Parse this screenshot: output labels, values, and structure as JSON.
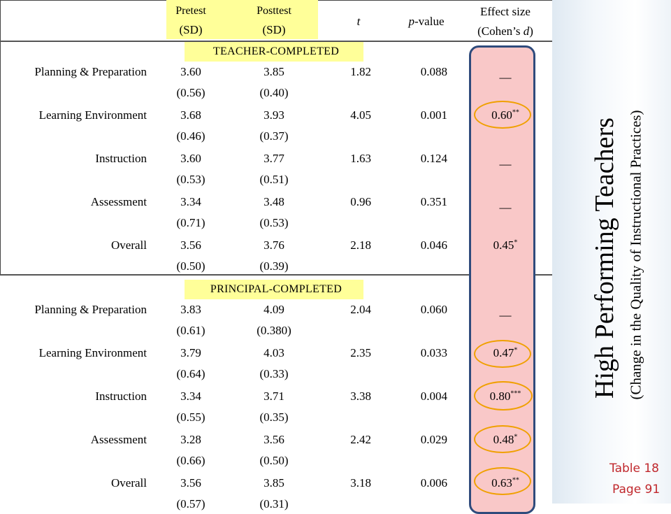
{
  "header": {
    "pretest_line1": "Pretest",
    "pretest_line2": "(SD)",
    "posttest_line1": "Posttest",
    "posttest_line2": "(SD)",
    "t": "t",
    "pvalue_italic": "p",
    "pvalue_rest": "-value",
    "effect_line1": "Effect size",
    "effect_line2_pre": "(Cohen’s ",
    "effect_line2_d": "d",
    "effect_line2_post": ")"
  },
  "sections": [
    {
      "title": "TEACHER-COMPLETED",
      "rows": [
        {
          "label": "Planning & Preparation",
          "pre": "3.60",
          "pre_sd": "(0.56)",
          "post": "3.85",
          "post_sd": "(0.40)",
          "t": "1.82",
          "p": "0.088",
          "effect": "—",
          "stars": ""
        },
        {
          "label": "Learning Environment",
          "pre": "3.68",
          "pre_sd": "(0.46)",
          "post": "3.93",
          "post_sd": "(0.37)",
          "t": "4.05",
          "p": "0.001",
          "effect": "0.60",
          "stars": "**"
        },
        {
          "label": "Instruction",
          "pre": "3.60",
          "pre_sd": "(0.53)",
          "post": "3.77",
          "post_sd": "(0.51)",
          "t": "1.63",
          "p": "0.124",
          "effect": "—",
          "stars": ""
        },
        {
          "label": "Assessment",
          "pre": "3.34",
          "pre_sd": "(0.71)",
          "post": "3.48",
          "post_sd": "(0.53)",
          "t": "0.96",
          "p": "0.351",
          "effect": "—",
          "stars": ""
        },
        {
          "label": "Overall",
          "pre": "3.56",
          "pre_sd": "(0.50)",
          "post": "3.76",
          "post_sd": "(0.39)",
          "t": "2.18",
          "p": "0.046",
          "effect": "0.45",
          "stars": "*"
        }
      ]
    },
    {
      "title": "PRINCIPAL-COMPLETED",
      "rows": [
        {
          "label": "Planning & Preparation",
          "pre": "3.83",
          "pre_sd": "(0.61)",
          "post": "4.09",
          "post_sd": "(0.380)",
          "t": "2.04",
          "p": "0.060",
          "effect": "—",
          "stars": ""
        },
        {
          "label": "Learning Environment",
          "pre": "3.79",
          "pre_sd": "(0.64)",
          "post": "4.03",
          "post_sd": "(0.33)",
          "t": "2.35",
          "p": "0.033",
          "effect": "0.47",
          "stars": "*"
        },
        {
          "label": "Instruction",
          "pre": "3.34",
          "pre_sd": "(0.55)",
          "post": "3.71",
          "post_sd": "(0.35)",
          "t": "3.38",
          "p": "0.004",
          "effect": "0.80",
          "stars": "***"
        },
        {
          "label": "Assessment",
          "pre": "3.28",
          "pre_sd": "(0.66)",
          "post": "3.56",
          "post_sd": "(0.50)",
          "t": "2.42",
          "p": "0.029",
          "effect": "0.48",
          "stars": "*"
        },
        {
          "label": "Overall",
          "pre": "3.56",
          "pre_sd": "(0.57)",
          "post": "3.85",
          "post_sd": "(0.31)",
          "t": "3.18",
          "p": "0.006",
          "effect": "0.63",
          "stars": "**"
        }
      ]
    }
  ],
  "side": {
    "title": "High Performing Teachers",
    "subtitle": "(Change in the Quality of Instructional Practices)",
    "table_ref": "Table 18",
    "page_ref": "Page 91"
  },
  "colors": {
    "header_highlight": "#ffff99",
    "effect_fill": "#f9c8c8",
    "effect_border": "#2f4b7c",
    "significance_ring": "#f0a000",
    "reference_text": "#c0282d"
  }
}
